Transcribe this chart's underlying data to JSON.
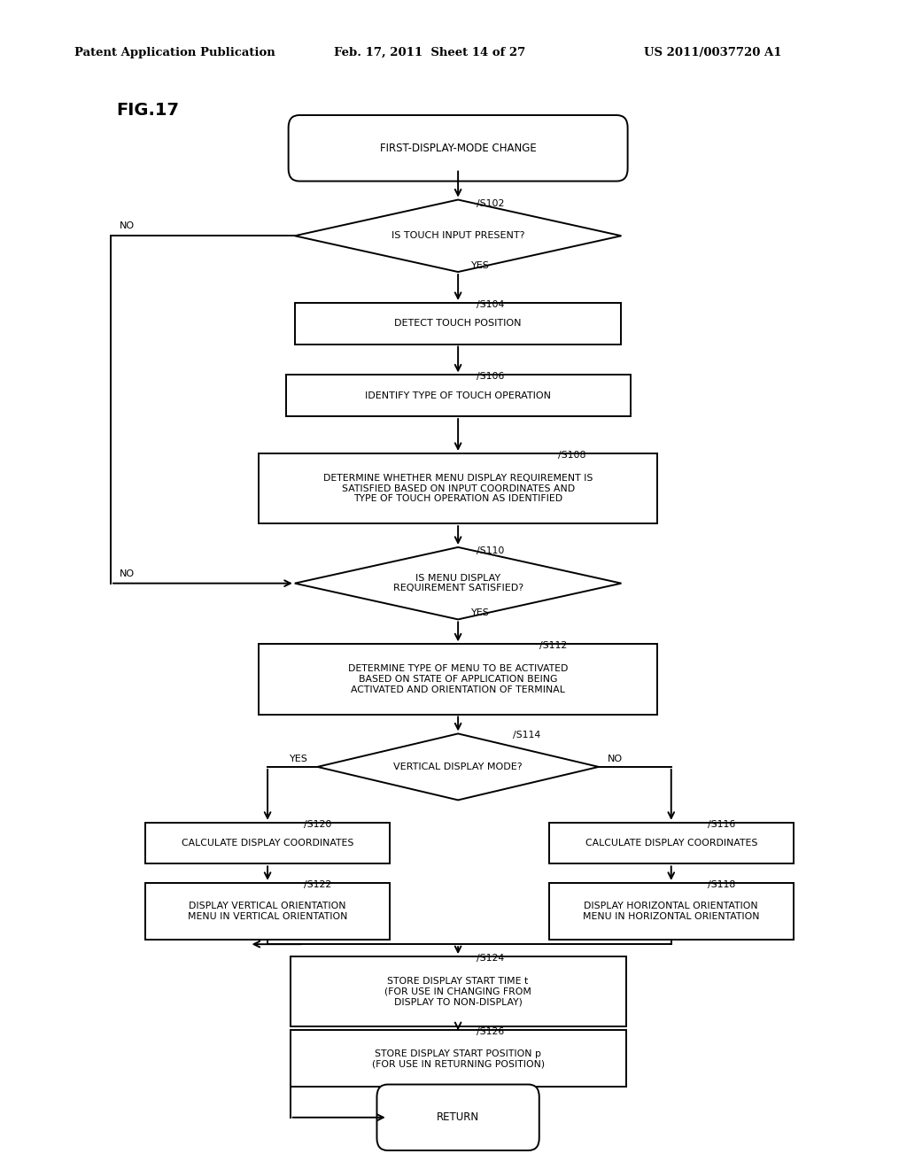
{
  "header_left": "Patent Application Publication",
  "header_mid": "Feb. 17, 2011  Sheet 14 of 27",
  "header_right": "US 2011/0037720 A1",
  "fig_label": "FIG.17",
  "bg_color": "#ffffff",
  "lc": "#000000",
  "nodes": {
    "start": {
      "label": "FIRST-DISPLAY-MODE CHANGE"
    },
    "S102": {
      "label": "IS TOUCH INPUT PRESENT?"
    },
    "S104": {
      "label": "DETECT TOUCH POSITION"
    },
    "S106": {
      "label": "IDENTIFY TYPE OF TOUCH OPERATION"
    },
    "S108": {
      "label": "DETERMINE WHETHER MENU DISPLAY REQUIREMENT IS\nSATISFIED BASED ON INPUT COORDINATES AND\nTYPE OF TOUCH OPERATION AS IDENTIFIED"
    },
    "S110": {
      "label": "IS MENU DISPLAY\nREQUIREMENT SATISFIED?"
    },
    "S112": {
      "label": "DETERMINE TYPE OF MENU TO BE ACTIVATED\nBASED ON STATE OF APPLICATION BEING\nACTIVATED AND ORIENTATION OF TERMINAL"
    },
    "S114": {
      "label": "VERTICAL DISPLAY MODE?"
    },
    "S120": {
      "label": "CALCULATE DISPLAY COORDINATES"
    },
    "S116": {
      "label": "CALCULATE DISPLAY COORDINATES"
    },
    "S122": {
      "label": "DISPLAY VERTICAL ORIENTATION\nMENU IN VERTICAL ORIENTATION"
    },
    "S118": {
      "label": "DISPLAY HORIZONTAL ORIENTATION\nMENU IN HORIZONTAL ORIENTATION"
    },
    "S124": {
      "label": "STORE DISPLAY START TIME t\n(FOR USE IN CHANGING FROM\nDISPLAY TO NON-DISPLAY)"
    },
    "S126": {
      "label": "STORE DISPLAY START POSITION p\n(FOR USE IN RETURNING POSITION)"
    },
    "end": {
      "label": "RETURN"
    }
  }
}
